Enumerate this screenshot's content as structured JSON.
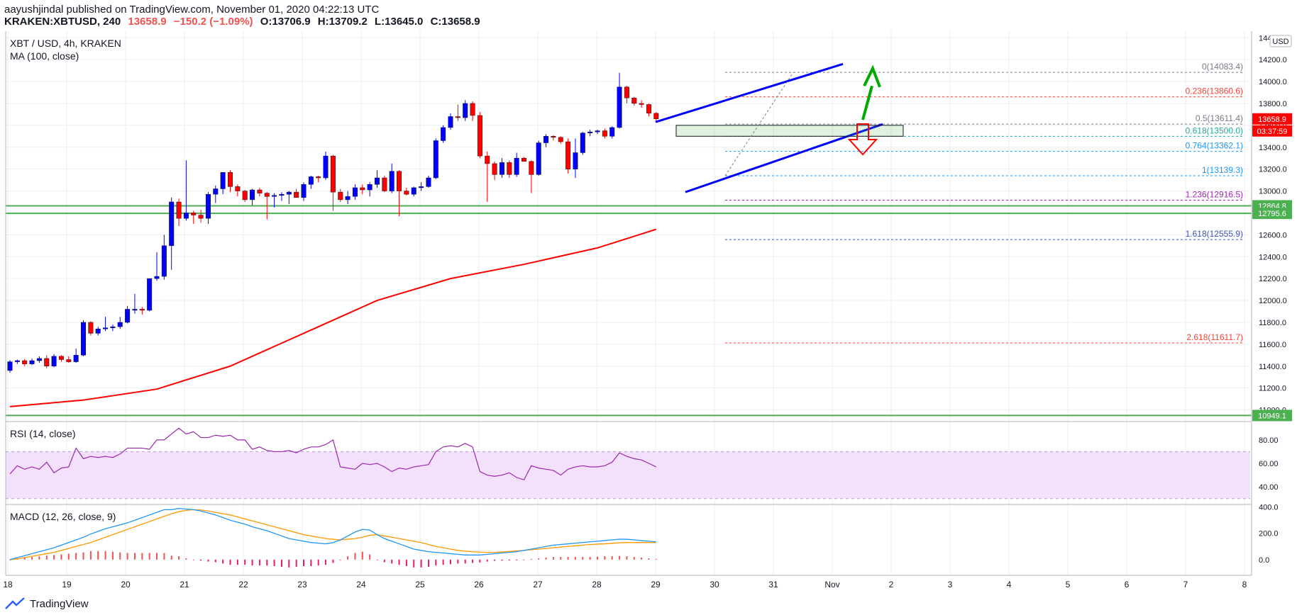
{
  "header": {
    "publish_line": "aayushjindal published on TradingView.com, November 01, 2020 04:22:13 UTC",
    "symbol": "KRAKEN:XBTUSD, 240",
    "last": "13658.9",
    "change": "−150.2 (−1.09%)",
    "open": "O:13706.9",
    "high": "H:13709.2",
    "low": "L:13645.0",
    "close": "C:13658.9"
  },
  "legend": {
    "pair": "XBT / USD, 4h, KRAKEN",
    "ma": "MA (100, close)",
    "rsi": "RSI (14, close)",
    "macd": "MACD (12, 26, close, 9)"
  },
  "currency": "USD",
  "footer": {
    "brand": "TradingView"
  },
  "colors": {
    "up": "#0000ff",
    "down": "#ff0000",
    "ma": "#ff0000",
    "support": "#4caf50",
    "channel": "#0000ff",
    "arrow_up": "#00aa00",
    "arrow_down": "#ff0000",
    "rsi_line": "#9c27b0",
    "rsi_band": "#f3e1fb",
    "macd_line": "#2196f3",
    "signal_line": "#ff9800"
  },
  "chart_data": {
    "type": "candlestick",
    "x_ticks": [
      "18",
      "19",
      "20",
      "21",
      "22",
      "23",
      "24",
      "25",
      "26",
      "27",
      "28",
      "29",
      "30",
      "31",
      "Nov",
      "2",
      "3",
      "4",
      "5",
      "6",
      "7",
      "8"
    ],
    "y_ticks": [
      11000,
      11200,
      11400,
      11600,
      11800,
      12000,
      12200,
      12400,
      12600,
      12800,
      13000,
      13200,
      13400,
      13600,
      13800,
      14000,
      14200,
      14400
    ],
    "ylim": [
      10900,
      14460
    ],
    "candles": [
      [
        11360,
        11455,
        11340,
        11440
      ],
      [
        11440,
        11460,
        11420,
        11450
      ],
      [
        11450,
        11465,
        11400,
        11420
      ],
      [
        11420,
        11470,
        11410,
        11450
      ],
      [
        11450,
        11490,
        11430,
        11470
      ],
      [
        11470,
        11500,
        11380,
        11400
      ],
      [
        11400,
        11510,
        11390,
        11490
      ],
      [
        11490,
        11500,
        11440,
        11460
      ],
      [
        11460,
        11490,
        11430,
        11440
      ],
      [
        11440,
        11560,
        11430,
        11500
      ],
      [
        11500,
        11820,
        11490,
        11800
      ],
      [
        11800,
        11810,
        11680,
        11700
      ],
      [
        11700,
        11760,
        11680,
        11740
      ],
      [
        11740,
        11850,
        11720,
        11750
      ],
      [
        11750,
        11780,
        11720,
        11760
      ],
      [
        11760,
        11850,
        11740,
        11800
      ],
      [
        11800,
        11950,
        11790,
        11920
      ],
      [
        11920,
        12060,
        11880,
        11920
      ],
      [
        11920,
        11940,
        11870,
        11910
      ],
      [
        11910,
        12200,
        11900,
        12200
      ],
      [
        12200,
        12440,
        12180,
        12220
      ],
      [
        12220,
        12600,
        12190,
        12500
      ],
      [
        12500,
        12940,
        12280,
        12900
      ],
      [
        12900,
        12930,
        12680,
        12750
      ],
      [
        12750,
        13280,
        12730,
        12800
      ],
      [
        12800,
        12820,
        12700,
        12780
      ],
      [
        12780,
        12830,
        12710,
        12750
      ],
      [
        12750,
        12990,
        12700,
        12970
      ],
      [
        12970,
        13050,
        12890,
        13020
      ],
      [
        13020,
        13160,
        12970,
        13170
      ],
      [
        13170,
        13190,
        12990,
        13040
      ],
      [
        13040,
        13060,
        12950,
        13000
      ],
      [
        13000,
        13010,
        12900,
        12920
      ],
      [
        12920,
        13020,
        12870,
        13010
      ],
      [
        13010,
        13030,
        12950,
        12980
      ],
      [
        12980,
        12990,
        12740,
        12950
      ],
      [
        12950,
        12980,
        12850,
        12960
      ],
      [
        12960,
        12990,
        12910,
        12970
      ],
      [
        12970,
        13000,
        12880,
        12990
      ],
      [
        12990,
        13020,
        12950,
        12940
      ],
      [
        12940,
        13080,
        12910,
        13060
      ],
      [
        13060,
        13140,
        13020,
        13130
      ],
      [
        13130,
        13140,
        13080,
        13120
      ],
      [
        13120,
        13360,
        13100,
        13320
      ],
      [
        13320,
        13330,
        12820,
        12990
      ],
      [
        12990,
        13020,
        12900,
        12920
      ],
      [
        12920,
        13000,
        12880,
        12950
      ],
      [
        12950,
        13060,
        12920,
        13030
      ],
      [
        13030,
        13060,
        12970,
        13010
      ],
      [
        13010,
        13080,
        12950,
        13060
      ],
      [
        13060,
        13190,
        13030,
        13120
      ],
      [
        13120,
        13140,
        12990,
        13000
      ],
      [
        13000,
        13250,
        12980,
        13180
      ],
      [
        13180,
        13190,
        12770,
        13000
      ],
      [
        13000,
        13030,
        12960,
        12970
      ],
      [
        12970,
        13040,
        12950,
        13030
      ],
      [
        13030,
        13080,
        13000,
        13040
      ],
      [
        13040,
        13140,
        13030,
        13120
      ],
      [
        13120,
        13480,
        13110,
        13460
      ],
      [
        13460,
        13600,
        13440,
        13580
      ],
      [
        13580,
        13710,
        13560,
        13680
      ],
      [
        13680,
        13790,
        13640,
        13670
      ],
      [
        13670,
        13830,
        13640,
        13800
      ],
      [
        13800,
        13820,
        13640,
        13690
      ],
      [
        13690,
        13720,
        13300,
        13320
      ],
      [
        13320,
        13360,
        12900,
        13250
      ],
      [
        13250,
        13270,
        13100,
        13150
      ],
      [
        13150,
        13300,
        13120,
        13260
      ],
      [
        13260,
        13280,
        13120,
        13150
      ],
      [
        13150,
        13350,
        13130,
        13300
      ],
      [
        13300,
        13310,
        13270,
        13270
      ],
      [
        13270,
        13280,
        12980,
        13150
      ],
      [
        13150,
        13460,
        13140,
        13440
      ],
      [
        13440,
        13520,
        13400,
        13500
      ],
      [
        13500,
        13510,
        13460,
        13490
      ],
      [
        13490,
        13500,
        13430,
        13450
      ],
      [
        13450,
        13480,
        13160,
        13200
      ],
      [
        13200,
        13480,
        13120,
        13350
      ],
      [
        13350,
        13540,
        13330,
        13530
      ],
      [
        13530,
        13560,
        13500,
        13540
      ],
      [
        13540,
        13560,
        13520,
        13550
      ],
      [
        13550,
        13570,
        13480,
        13500
      ],
      [
        13500,
        13590,
        13480,
        13580
      ],
      [
        13580,
        14080,
        13570,
        13950
      ],
      [
        13950,
        13960,
        13800,
        13850
      ],
      [
        13850,
        13860,
        13780,
        13800
      ],
      [
        13800,
        13830,
        13760,
        13790
      ],
      [
        13790,
        13800,
        13680,
        13710
      ],
      [
        13710,
        13720,
        13640,
        13659
      ]
    ],
    "ma100": [
      [
        0,
        11030
      ],
      [
        10,
        11090
      ],
      [
        20,
        11190
      ],
      [
        30,
        11400
      ],
      [
        40,
        11700
      ],
      [
        50,
        12000
      ],
      [
        60,
        12200
      ],
      [
        70,
        12330
      ],
      [
        80,
        12480
      ],
      [
        88,
        12650
      ]
    ],
    "horizontal_levels": [
      {
        "price": 12864.8,
        "label": "12864.8"
      },
      {
        "price": 12795.6,
        "label": "12795.6"
      },
      {
        "price": 10949.1,
        "label": "10949.1"
      }
    ],
    "fibonacci": [
      {
        "label": "0(14083.4)",
        "price": 14083.4,
        "color": "#787b86"
      },
      {
        "label": "0.236(13860.6)",
        "price": 13860.6,
        "color": "#f44336"
      },
      {
        "label": "0.5(13611.4)",
        "price": 13611.4,
        "color": "#787b86"
      },
      {
        "label": "0.618(13500.0)",
        "price": 13500.0,
        "color": "#26a69a"
      },
      {
        "label": "0.764(13362.1)",
        "price": 13362.1,
        "color": "#2196f3"
      },
      {
        "label": "1(13139.3)",
        "price": 13139.3,
        "color": "#2196f3"
      },
      {
        "label": "1.236(12916.5)",
        "price": 12916.5,
        "color": "#9c27b0"
      },
      {
        "label": "1.618(12555.9)",
        "price": 12555.9,
        "color": "#3f51b5"
      },
      {
        "label": "2.618(11611.7)",
        "price": 11611.7,
        "color": "#f44336"
      }
    ],
    "price_tags": [
      {
        "price": 13658.9,
        "text": "13658.9"
      },
      {
        "price": 13500.0,
        "text": "03:37:59"
      }
    ],
    "rsi": {
      "y_ticks": [
        40,
        60,
        80
      ],
      "ylim": [
        25,
        95
      ],
      "band": [
        30,
        70
      ],
      "values": [
        51,
        58,
        55,
        57,
        55,
        61,
        52,
        56,
        57,
        73,
        64,
        66,
        65,
        66,
        65,
        68,
        73,
        73,
        73,
        72,
        80,
        80,
        85,
        90,
        85,
        87,
        82,
        82,
        84,
        83,
        84,
        80,
        80,
        72,
        74,
        71,
        70,
        70,
        71,
        69,
        72,
        74,
        74,
        76,
        80,
        57,
        56,
        55,
        60,
        59,
        60,
        57,
        53,
        56,
        55,
        57,
        58,
        59,
        70,
        74,
        75,
        74,
        77,
        74,
        53,
        50,
        49,
        50,
        52,
        48,
        46,
        58,
        56,
        55,
        54,
        50,
        55,
        57,
        58,
        57,
        57,
        58,
        61,
        69,
        66,
        64,
        63,
        60,
        57
      ]
    },
    "macd": {
      "y_ticks": [
        0.0,
        200.0,
        400.0
      ],
      "y_tick_labels": [
        "0.0",
        "200.0",
        "400.0"
      ],
      "ylim": [
        -120,
        420
      ],
      "macd": [
        0,
        15,
        30,
        45,
        60,
        75,
        90,
        110,
        130,
        150,
        170,
        195,
        215,
        235,
        250,
        265,
        280,
        300,
        320,
        340,
        360,
        380,
        380,
        390,
        385,
        380,
        370,
        355,
        340,
        320,
        300,
        285,
        270,
        250,
        235,
        220,
        200,
        180,
        160,
        150,
        140,
        130,
        125,
        120,
        130,
        150,
        180,
        210,
        230,
        225,
        190,
        160,
        140,
        120,
        100,
        80,
        70,
        60,
        55,
        50,
        45,
        40,
        35,
        35,
        35,
        40,
        45,
        50,
        55,
        60,
        70,
        80,
        90,
        100,
        110,
        115,
        120,
        125,
        130,
        135,
        140,
        145,
        150,
        155,
        155,
        150,
        145,
        140,
        135
      ],
      "signal": [
        0,
        5,
        15,
        25,
        35,
        45,
        55,
        70,
        85,
        100,
        115,
        130,
        150,
        170,
        190,
        210,
        230,
        250,
        270,
        290,
        310,
        330,
        350,
        365,
        375,
        380,
        378,
        370,
        360,
        350,
        340,
        325,
        310,
        295,
        280,
        265,
        250,
        235,
        220,
        205,
        190,
        180,
        170,
        160,
        155,
        150,
        155,
        160,
        170,
        185,
        190,
        180,
        170,
        160,
        150,
        140,
        130,
        115,
        100,
        90,
        80,
        70,
        65,
        60,
        57,
        55,
        55,
        58,
        62,
        66,
        70,
        75,
        80,
        85,
        90,
        95,
        100,
        105,
        110,
        115,
        118,
        120,
        124,
        128,
        130,
        130,
        130,
        130,
        130
      ],
      "hist": [
        0,
        10,
        15,
        20,
        25,
        30,
        35,
        40,
        45,
        50,
        55,
        65,
        65,
        65,
        60,
        55,
        50,
        50,
        50,
        50,
        50,
        50,
        30,
        25,
        10,
        0,
        -8,
        -15,
        -20,
        -30,
        -40,
        -40,
        -40,
        -45,
        -45,
        -45,
        -50,
        -55,
        -60,
        -55,
        -50,
        -50,
        -45,
        -40,
        -25,
        0,
        25,
        50,
        60,
        40,
        0,
        -20,
        -30,
        -40,
        -50,
        -60,
        -60,
        -55,
        -45,
        -40,
        -35,
        -30,
        -30,
        -25,
        -22,
        -15,
        -10,
        -8,
        -7,
        -6,
        0,
        5,
        10,
        15,
        20,
        20,
        20,
        20,
        20,
        20,
        22,
        25,
        26,
        27,
        25,
        20,
        15,
        10,
        5
      ]
    }
  }
}
